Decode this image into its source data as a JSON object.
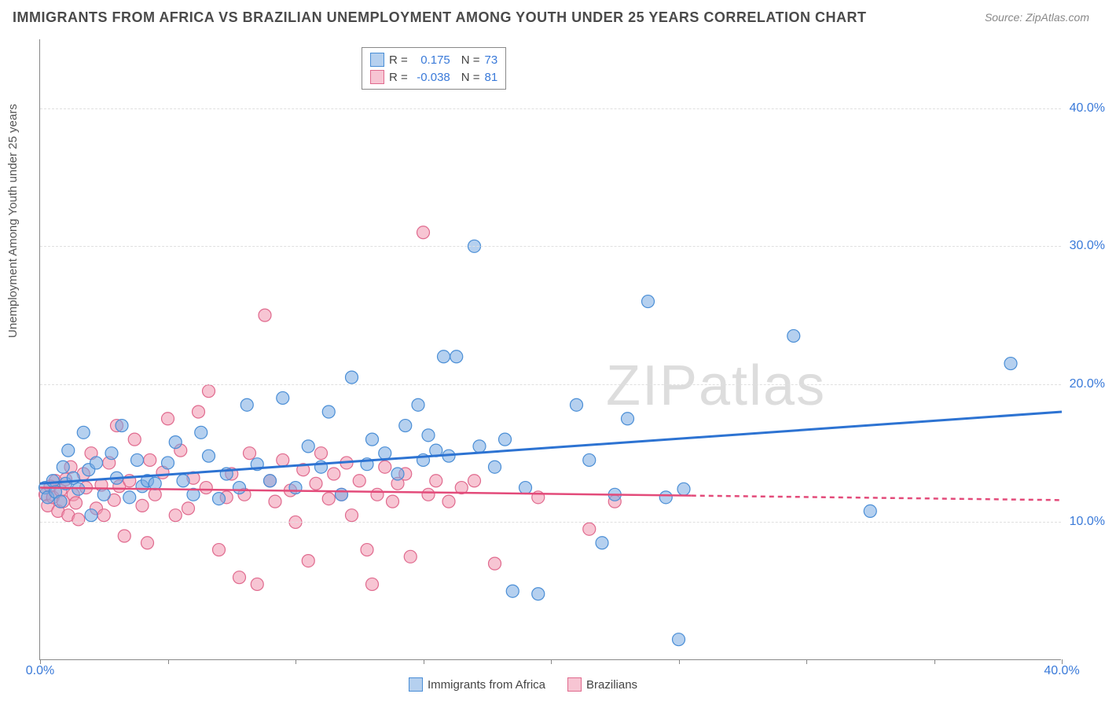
{
  "title": "IMMIGRANTS FROM AFRICA VS BRAZILIAN UNEMPLOYMENT AMONG YOUTH UNDER 25 YEARS CORRELATION CHART",
  "source": "Source: ZipAtlas.com",
  "watermark": "ZIPatlas",
  "ylabel": "Unemployment Among Youth under 25 years",
  "xlim": [
    0,
    40
  ],
  "ylim": [
    0,
    45
  ],
  "ytick_values": [
    10,
    20,
    30,
    40
  ],
  "ytick_labels": [
    "10.0%",
    "20.0%",
    "30.0%",
    "40.0%"
  ],
  "xtick_values": [
    0,
    5,
    10,
    15,
    20,
    25,
    30,
    35,
    40
  ],
  "xtick_labels": {
    "0": "0.0%",
    "40": "40.0%"
  },
  "grid_color": "#e0e0e0",
  "axis_color": "#888888",
  "text_color_values": "#3a7ad9",
  "chart_bg": "#ffffff",
  "series": {
    "blue": {
      "label": "Immigrants from Africa",
      "R": "0.175",
      "N": "73",
      "fill": "rgba(120,170,225,0.55)",
      "stroke": "#4a8ed6",
      "marker_radius": 8,
      "trend": {
        "x1": 0,
        "y1": 12.8,
        "x2": 40,
        "y2": 18.0,
        "solid_until_x": 40,
        "color": "#2d73d2",
        "width": 3
      },
      "points": [
        [
          0.2,
          12.5
        ],
        [
          0.3,
          11.8
        ],
        [
          0.5,
          13.0
        ],
        [
          0.6,
          12.2
        ],
        [
          0.8,
          11.5
        ],
        [
          0.9,
          14.0
        ],
        [
          1.0,
          12.8
        ],
        [
          1.1,
          15.2
        ],
        [
          1.3,
          13.2
        ],
        [
          1.5,
          12.4
        ],
        [
          1.7,
          16.5
        ],
        [
          1.9,
          13.8
        ],
        [
          2.0,
          10.5
        ],
        [
          2.2,
          14.3
        ],
        [
          2.5,
          12.0
        ],
        [
          2.8,
          15.0
        ],
        [
          3.0,
          13.2
        ],
        [
          3.2,
          17.0
        ],
        [
          3.5,
          11.8
        ],
        [
          3.8,
          14.5
        ],
        [
          4.0,
          12.6
        ],
        [
          4.2,
          13.0
        ],
        [
          4.5,
          12.8
        ],
        [
          5.0,
          14.3
        ],
        [
          5.3,
          15.8
        ],
        [
          5.6,
          13.0
        ],
        [
          6.0,
          12.0
        ],
        [
          6.3,
          16.5
        ],
        [
          6.6,
          14.8
        ],
        [
          7.0,
          11.7
        ],
        [
          7.3,
          13.5
        ],
        [
          7.8,
          12.5
        ],
        [
          8.1,
          18.5
        ],
        [
          8.5,
          14.2
        ],
        [
          9.0,
          13.0
        ],
        [
          9.5,
          19.0
        ],
        [
          10.0,
          12.5
        ],
        [
          10.5,
          15.5
        ],
        [
          11.0,
          14.0
        ],
        [
          11.3,
          18.0
        ],
        [
          11.8,
          12.0
        ],
        [
          12.2,
          20.5
        ],
        [
          12.8,
          14.2
        ],
        [
          13.0,
          16.0
        ],
        [
          13.5,
          15.0
        ],
        [
          14.0,
          13.5
        ],
        [
          14.3,
          17.0
        ],
        [
          14.8,
          18.5
        ],
        [
          15.0,
          14.5
        ],
        [
          15.2,
          16.3
        ],
        [
          15.5,
          15.2
        ],
        [
          15.8,
          22.0
        ],
        [
          16.0,
          14.8
        ],
        [
          16.3,
          22.0
        ],
        [
          17.0,
          30.0
        ],
        [
          17.2,
          15.5
        ],
        [
          17.8,
          14.0
        ],
        [
          18.2,
          16.0
        ],
        [
          18.5,
          5.0
        ],
        [
          19.0,
          12.5
        ],
        [
          19.5,
          4.8
        ],
        [
          21.0,
          18.5
        ],
        [
          21.5,
          14.5
        ],
        [
          22.0,
          8.5
        ],
        [
          22.5,
          12.0
        ],
        [
          23.0,
          17.5
        ],
        [
          23.8,
          26.0
        ],
        [
          24.5,
          11.8
        ],
        [
          25.0,
          1.5
        ],
        [
          25.2,
          12.4
        ],
        [
          29.5,
          23.5
        ],
        [
          32.5,
          10.8
        ],
        [
          38.0,
          21.5
        ]
      ]
    },
    "pink": {
      "label": "Brazilians",
      "R": "-0.038",
      "N": "81",
      "fill": "rgba(240,150,175,0.55)",
      "stroke": "#e06a8e",
      "marker_radius": 8,
      "trend": {
        "x1": 0,
        "y1": 12.5,
        "x2": 40,
        "y2": 11.6,
        "solid_until_x": 25.5,
        "color": "#e34b7a",
        "width": 2.5,
        "dash": "6,5"
      },
      "points": [
        [
          0.2,
          12.0
        ],
        [
          0.3,
          11.2
        ],
        [
          0.4,
          12.6
        ],
        [
          0.5,
          11.8
        ],
        [
          0.6,
          13.0
        ],
        [
          0.7,
          10.8
        ],
        [
          0.8,
          12.3
        ],
        [
          0.9,
          11.5
        ],
        [
          1.0,
          13.1
        ],
        [
          1.1,
          10.5
        ],
        [
          1.2,
          14.0
        ],
        [
          1.3,
          12.0
        ],
        [
          1.4,
          11.4
        ],
        [
          1.5,
          10.2
        ],
        [
          1.7,
          13.5
        ],
        [
          1.8,
          12.5
        ],
        [
          2.0,
          15.0
        ],
        [
          2.2,
          11.0
        ],
        [
          2.4,
          12.7
        ],
        [
          2.5,
          10.5
        ],
        [
          2.7,
          14.3
        ],
        [
          2.9,
          11.6
        ],
        [
          3.0,
          17.0
        ],
        [
          3.1,
          12.6
        ],
        [
          3.3,
          9.0
        ],
        [
          3.5,
          13.0
        ],
        [
          3.7,
          16.0
        ],
        [
          4.0,
          11.2
        ],
        [
          4.2,
          8.5
        ],
        [
          4.3,
          14.5
        ],
        [
          4.5,
          12.0
        ],
        [
          4.8,
          13.6
        ],
        [
          5.0,
          17.5
        ],
        [
          5.3,
          10.5
        ],
        [
          5.5,
          15.2
        ],
        [
          5.8,
          11.0
        ],
        [
          6.0,
          13.2
        ],
        [
          6.2,
          18.0
        ],
        [
          6.5,
          12.5
        ],
        [
          6.6,
          19.5
        ],
        [
          7.0,
          8.0
        ],
        [
          7.3,
          11.8
        ],
        [
          7.5,
          13.5
        ],
        [
          7.8,
          6.0
        ],
        [
          8.0,
          12.0
        ],
        [
          8.2,
          15.0
        ],
        [
          8.5,
          5.5
        ],
        [
          8.8,
          25.0
        ],
        [
          9.0,
          13.0
        ],
        [
          9.2,
          11.5
        ],
        [
          9.5,
          14.5
        ],
        [
          9.8,
          12.3
        ],
        [
          10.0,
          10.0
        ],
        [
          10.3,
          13.8
        ],
        [
          10.5,
          7.2
        ],
        [
          10.8,
          12.8
        ],
        [
          11.0,
          15.0
        ],
        [
          11.3,
          11.7
        ],
        [
          11.5,
          13.5
        ],
        [
          11.8,
          12.0
        ],
        [
          12.0,
          14.3
        ],
        [
          12.2,
          10.5
        ],
        [
          12.5,
          13.0
        ],
        [
          12.8,
          8.0
        ],
        [
          13.0,
          5.5
        ],
        [
          13.2,
          12.0
        ],
        [
          13.5,
          14.0
        ],
        [
          13.8,
          11.5
        ],
        [
          14.0,
          12.8
        ],
        [
          14.3,
          13.5
        ],
        [
          14.5,
          7.5
        ],
        [
          15.0,
          31.0
        ],
        [
          15.2,
          12.0
        ],
        [
          15.5,
          13.0
        ],
        [
          16.0,
          11.5
        ],
        [
          16.5,
          12.5
        ],
        [
          17.0,
          13.0
        ],
        [
          17.8,
          7.0
        ],
        [
          19.5,
          11.8
        ],
        [
          21.5,
          9.5
        ],
        [
          22.5,
          11.5
        ]
      ]
    }
  },
  "legend_top": {
    "rows": [
      {
        "swatch_key": "blue",
        "R_label": "R =",
        "N_label": "N ="
      },
      {
        "swatch_key": "pink",
        "R_label": "R =",
        "N_label": "N ="
      }
    ]
  }
}
